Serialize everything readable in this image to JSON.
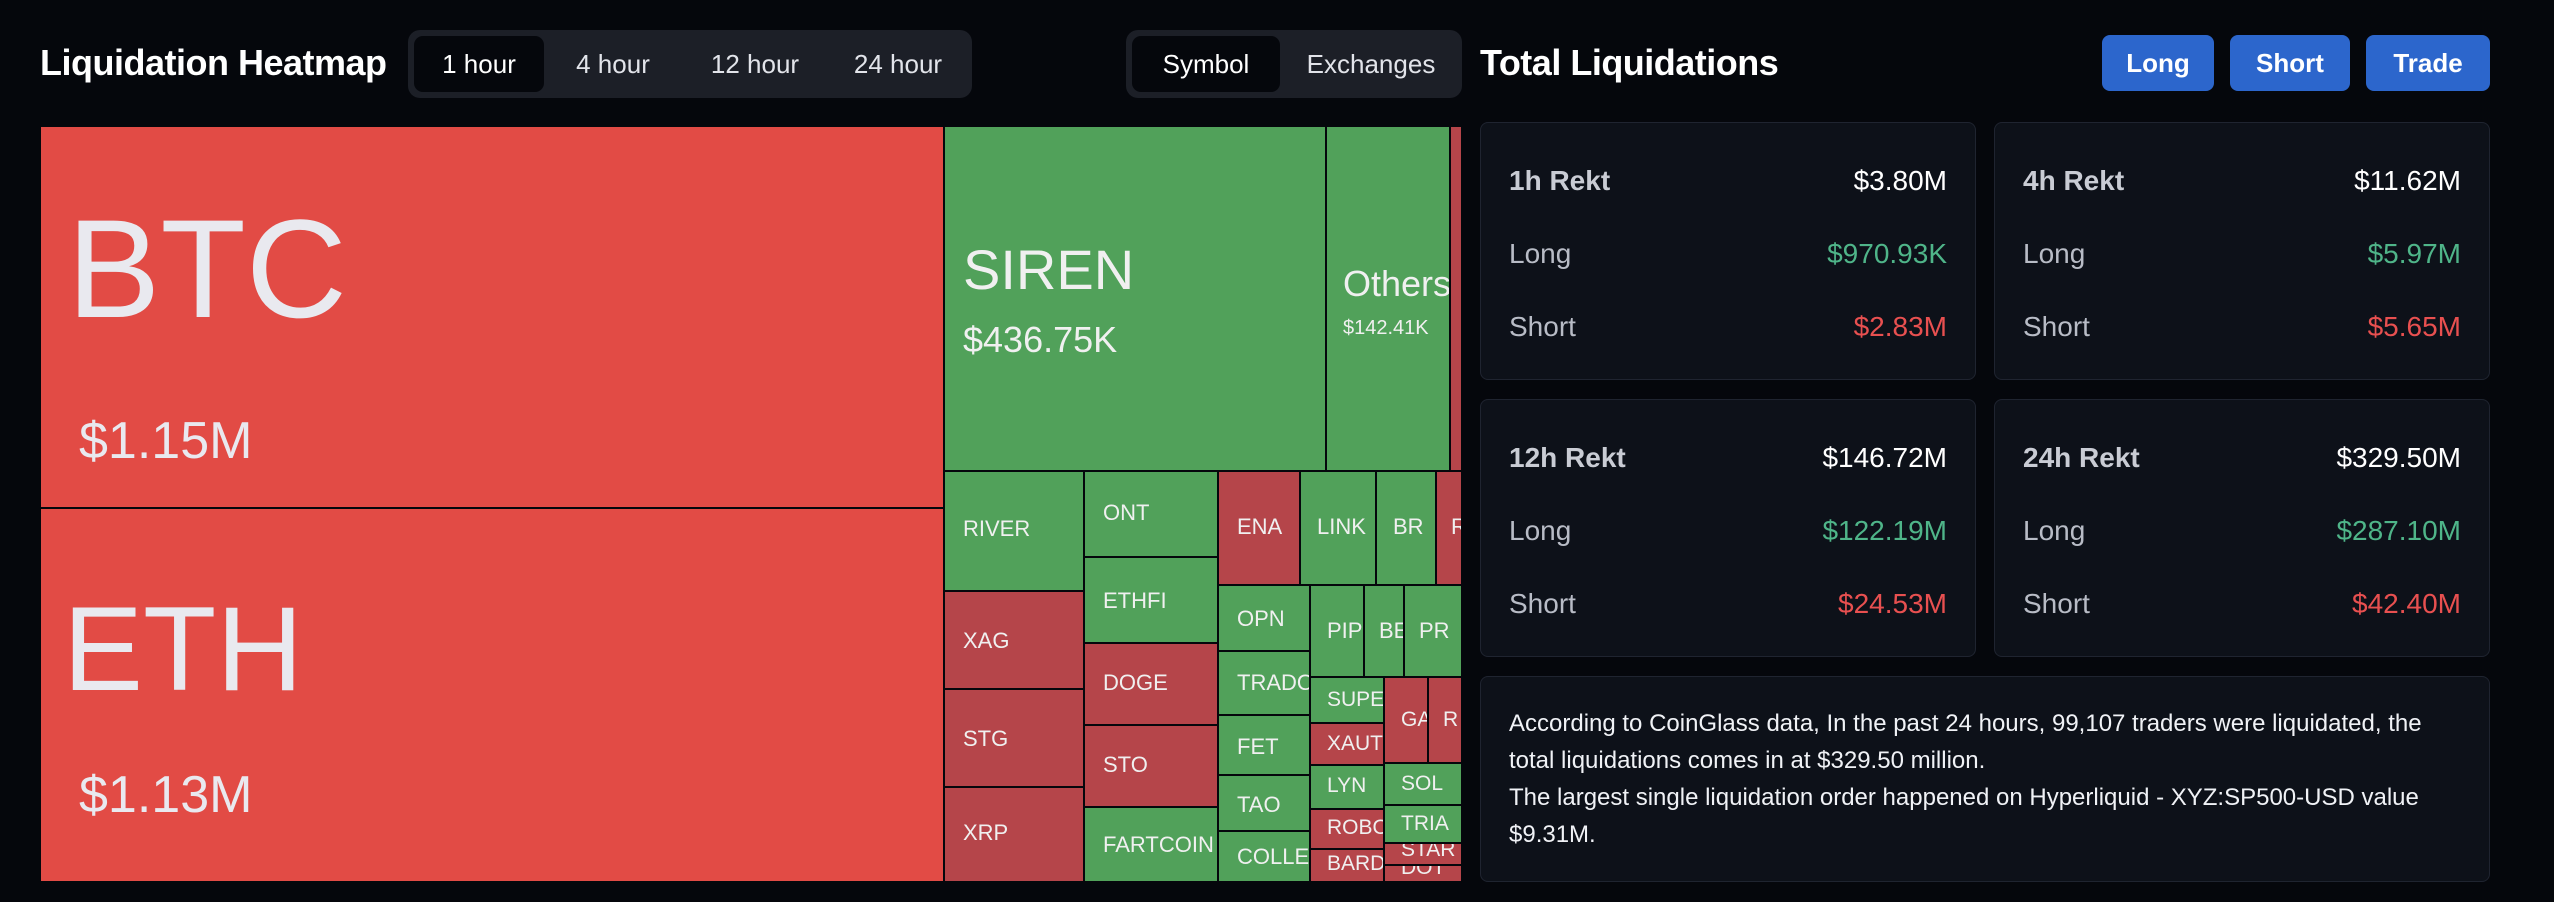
{
  "heatmap": {
    "title": "Liquidation Heatmap",
    "timeframes": [
      "1 hour",
      "4 hour",
      "12 hour",
      "24 hour"
    ],
    "active_timeframe": "1 hour",
    "group_options": [
      "Symbol",
      "Exchanges"
    ],
    "active_group": "Symbol",
    "tiles": [
      {
        "name": "BTC",
        "value": "$1.15M",
        "color": "#e24b45"
      },
      {
        "name": "ETH",
        "value": "$1.13M",
        "color": "#e24b45"
      },
      {
        "name": "SIREN",
        "value": "$436.75K",
        "color": "#51a15a"
      },
      {
        "name": "Others",
        "value": "$142.41K",
        "color": "#51a15a"
      },
      {
        "name": "RIVER",
        "color": "#51a15a"
      },
      {
        "name": "ONT",
        "color": "#51a15a"
      },
      {
        "name": "ENA",
        "color": "#b5454a"
      },
      {
        "name": "LINK",
        "color": "#51a15a"
      },
      {
        "name": "BR",
        "color": "#51a15a"
      },
      {
        "name": "R",
        "color": "#b5454a"
      },
      {
        "name": "ETHFI",
        "color": "#51a15a"
      },
      {
        "name": "XAG",
        "color": "#b5454a"
      },
      {
        "name": "OPN",
        "color": "#51a15a"
      },
      {
        "name": "PIP",
        "color": "#51a15a"
      },
      {
        "name": "BE",
        "color": "#51a15a"
      },
      {
        "name": "PR",
        "color": "#51a15a"
      },
      {
        "name": "DOGE",
        "color": "#b5454a"
      },
      {
        "name": "TRADO",
        "color": "#51a15a"
      },
      {
        "name": "SUPER",
        "color": "#51a15a"
      },
      {
        "name": "GA",
        "color": "#b5454a"
      },
      {
        "name": "R",
        "color": "#b5454a"
      },
      {
        "name": "STG",
        "color": "#b5454a"
      },
      {
        "name": "XAUT",
        "color": "#b5454a"
      },
      {
        "name": "FET",
        "color": "#51a15a"
      },
      {
        "name": "SOL",
        "color": "#51a15a"
      },
      {
        "name": "STO",
        "color": "#b5454a"
      },
      {
        "name": "LYN",
        "color": "#51a15a"
      },
      {
        "name": "TAO",
        "color": "#51a15a"
      },
      {
        "name": "TRIA",
        "color": "#51a15a"
      },
      {
        "name": "XRP",
        "color": "#b5454a"
      },
      {
        "name": "ROBO",
        "color": "#b5454a"
      },
      {
        "name": "STAR",
        "color": "#b5454a"
      },
      {
        "name": "FARTCOIN",
        "color": "#51a15a"
      },
      {
        "name": "COLLEC",
        "color": "#51a15a"
      },
      {
        "name": "BARD",
        "color": "#b5454a"
      },
      {
        "name": "DOT",
        "color": "#b5454a"
      }
    ]
  },
  "total": {
    "title": "Total Liquidations",
    "buttons": [
      "Long",
      "Short",
      "Trade"
    ],
    "cards": [
      {
        "label": "1h Rekt",
        "total": "$3.80M",
        "long_label": "Long",
        "long": "$970.93K",
        "short_label": "Short",
        "short": "$2.83M"
      },
      {
        "label": "4h Rekt",
        "total": "$11.62M",
        "long_label": "Long",
        "long": "$5.97M",
        "short_label": "Short",
        "short": "$5.65M"
      },
      {
        "label": "12h Rekt",
        "total": "$146.72M",
        "long_label": "Long",
        "long": "$122.19M",
        "short_label": "Short",
        "short": "$24.53M"
      },
      {
        "label": "24h Rekt",
        "total": "$329.50M",
        "long_label": "Long",
        "long": "$287.10M",
        "short_label": "Short",
        "short": "$42.40M"
      }
    ],
    "summary_line1": "According to CoinGlass data, In the past 24 hours, 99,107 traders were liquidated, the total liquidations comes in at $329.50 million.",
    "summary_line2": "The largest single liquidation order happened on Hyperliquid - XYZ:SP500-USD value $9.31M."
  },
  "colors": {
    "accent": "#2c66cc",
    "long": "#4fb589",
    "short": "#e85050",
    "bull_tile": "#51a15a",
    "bear_tile": "#e24b45",
    "bear_tile_dark": "#b5454a"
  }
}
